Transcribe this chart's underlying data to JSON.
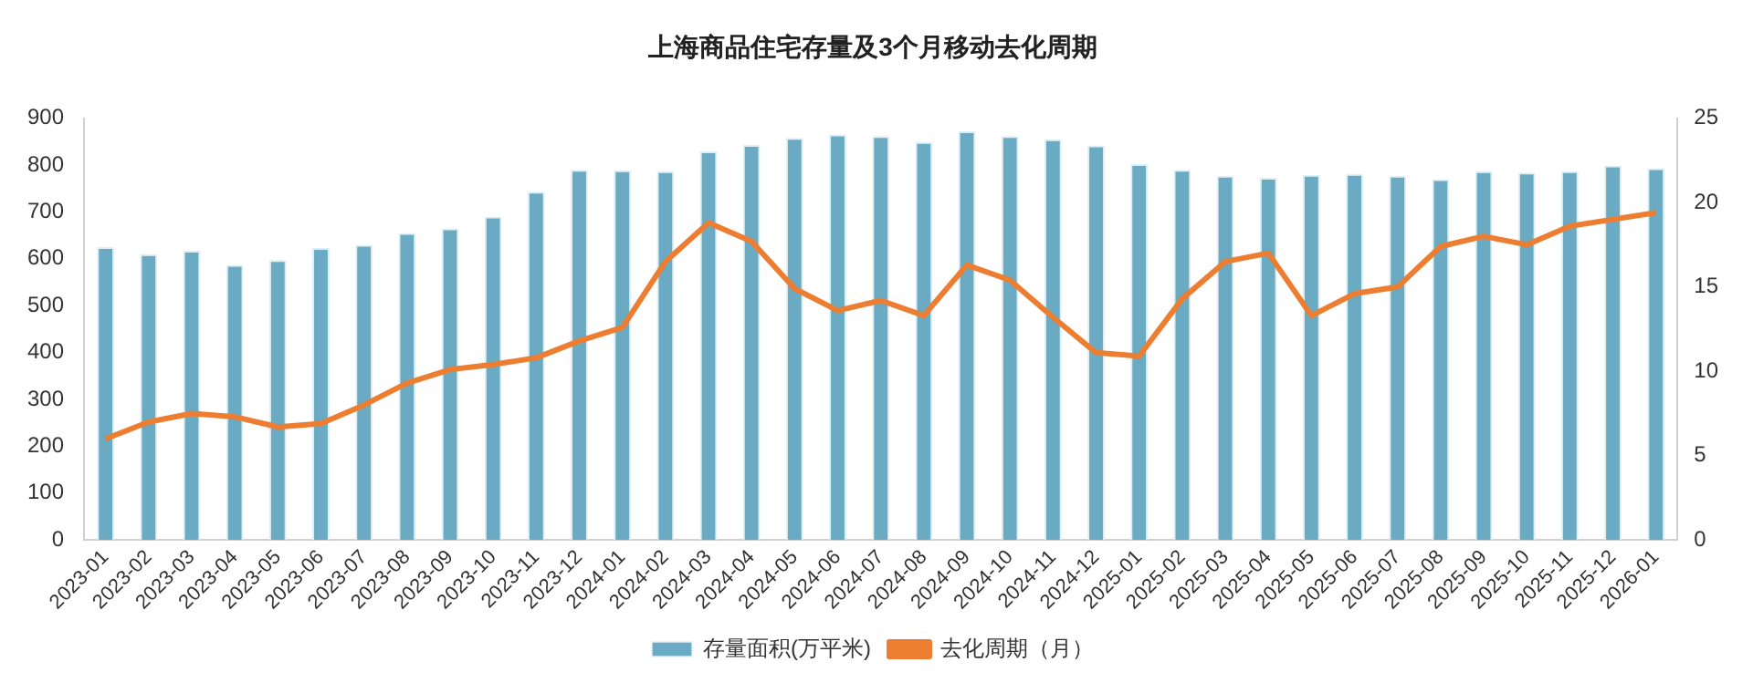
{
  "chart_data": {
    "type": "bar",
    "title": "上海商品住宅存量及3个月移动去化周期",
    "categories": [
      "2023-01",
      "2023-02",
      "2023-03",
      "2023-04",
      "2023-05",
      "2023-06",
      "2023-07",
      "2023-08",
      "2023-09",
      "2023-10",
      "2023-11",
      "2023-12",
      "2024-01",
      "2024-02",
      "2024-03",
      "2024-04",
      "2024-05",
      "2024-06",
      "2024-07",
      "2024-08",
      "2024-09",
      "2024-10",
      "2024-11",
      "2024-12",
      "2025-01",
      "2025-02",
      "2025-03",
      "2025-04",
      "2025-05",
      "2025-06",
      "2025-07",
      "2025-08",
      "2025-09",
      "2025-10",
      "2025-11",
      "2025-12",
      "2026-01"
    ],
    "series": [
      {
        "name": "存量面积(万平米)",
        "color": "#6aaac3",
        "values": [
          625,
          610,
          617,
          587,
          597,
          623,
          630,
          655,
          665,
          690,
          743,
          790,
          789,
          787,
          829,
          843,
          858,
          865,
          862,
          849,
          872,
          862,
          855,
          842,
          802,
          790,
          777,
          773,
          779,
          781,
          777,
          770,
          787,
          784,
          787,
          799,
          793
        ]
      },
      {
        "name": "去化周期（月）",
        "type": "line",
        "axis": "y2",
        "color": "#ed7d31",
        "values": [
          6.0,
          7.0,
          7.5,
          7.3,
          6.7,
          6.9,
          8.0,
          9.3,
          10.1,
          10.4,
          10.8,
          11.8,
          12.6,
          16.5,
          18.8,
          17.7,
          14.9,
          13.6,
          14.2,
          13.3,
          16.3,
          15.4,
          13.2,
          11.1,
          10.9,
          14.3,
          16.5,
          17.0,
          13.3,
          14.6,
          15.0,
          17.4,
          18.0,
          17.5,
          18.6,
          19.0,
          19.4
        ]
      }
    ],
    "ylim": [
      0,
      900
    ],
    "yticks": [
      0,
      100,
      200,
      300,
      400,
      500,
      600,
      700,
      800,
      900
    ],
    "y2lim": [
      0,
      25
    ],
    "y2ticks": [
      0,
      5,
      10,
      15,
      20,
      25
    ],
    "grid": false,
    "legend": "bottom",
    "marker": "none"
  }
}
